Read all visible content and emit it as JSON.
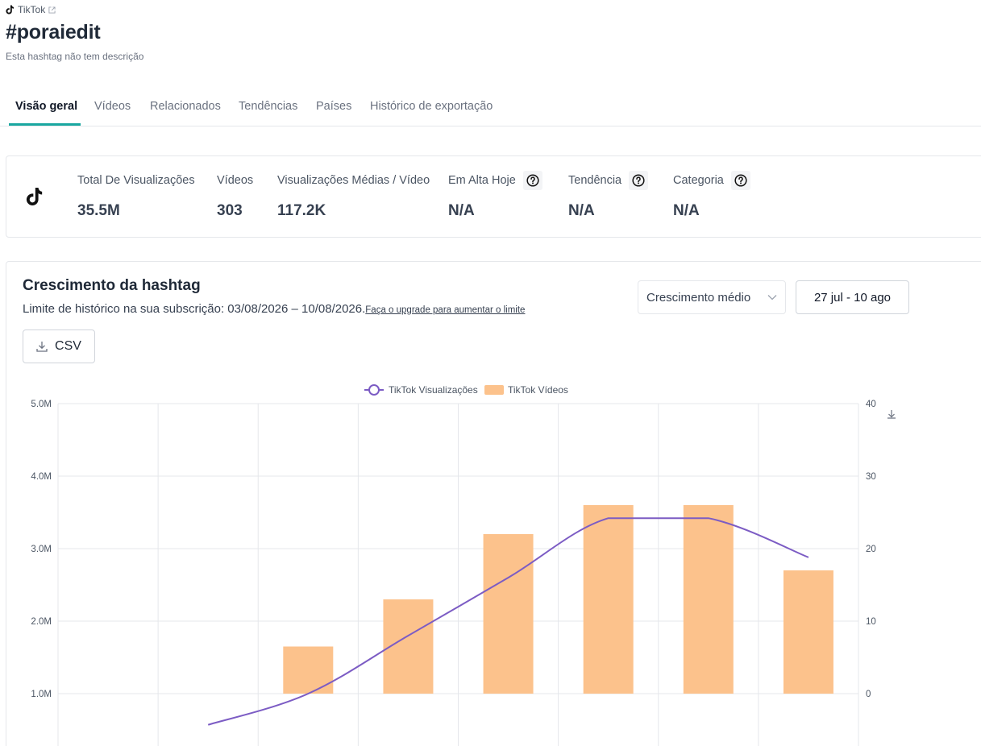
{
  "header": {
    "source_label": "TikTok",
    "source_icon": "tiktok-icon",
    "external_icon": "external-link-icon",
    "title": "#poraiedit",
    "description": "Esta hashtag não tem descrição"
  },
  "tabs": [
    {
      "label": "Visão geral",
      "active": true
    },
    {
      "label": "Vídeos",
      "active": false
    },
    {
      "label": "Relacionados",
      "active": false
    },
    {
      "label": "Tendências",
      "active": false
    },
    {
      "label": "Países",
      "active": false
    },
    {
      "label": "Histórico de exportação",
      "active": false
    }
  ],
  "stats": {
    "icon": "tiktok-icon",
    "items": [
      {
        "label": "Total De Visualizações",
        "value": "35.5M",
        "help": false
      },
      {
        "label": "Vídeos",
        "value": "303",
        "help": false
      },
      {
        "label": "Visualizações Médias / Vídeo",
        "value": "117.2K",
        "help": false
      },
      {
        "label": "Em Alta Hoje",
        "value": "N/A",
        "help": true
      },
      {
        "label": "Tendência",
        "value": "N/A",
        "help": true
      },
      {
        "label": "Categoria",
        "value": "N/A",
        "help": true
      }
    ]
  },
  "growth": {
    "title": "Crescimento da hashtag",
    "limit_text": "Limite de histórico na sua subscrição: 03/08/2026 – 10/08/2026.",
    "upgrade_link": "Faça o upgrade para aumentar o limite",
    "select_value": "Crescimento médio",
    "date_range": "27 jul - 10 ago",
    "csv_label": "CSV"
  },
  "colors": {
    "accent": "#19a7a0",
    "line_series": "#7c5cc4",
    "bar_series": "#fcc28c"
  },
  "chart_data": {
    "type": "bar",
    "x_labels_visible": false,
    "categories_count": 8,
    "series": [
      {
        "name": "TikTok Visualizações",
        "kind": "line",
        "axis": "left",
        "values": [
          null,
          0.57,
          1.0,
          1.8,
          2.6,
          3.42,
          3.42,
          2.88
        ]
      },
      {
        "name": "TikTok Vídeos",
        "kind": "bar",
        "axis": "right",
        "values": [
          null,
          null,
          6.5,
          13,
          22,
          26,
          26,
          17
        ]
      }
    ],
    "y_left": {
      "ticks": [
        "5.0M",
        "4.0M",
        "3.0M",
        "2.0M",
        "1.0M"
      ],
      "tick_values": [
        5.0,
        4.0,
        3.0,
        2.0,
        1.0
      ],
      "unit": "M",
      "ylim": [
        0.3,
        5.0
      ]
    },
    "y_right": {
      "ticks": [
        "40",
        "30",
        "20",
        "10",
        "0"
      ],
      "tick_values": [
        40,
        30,
        20,
        10,
        0
      ],
      "ylim": [
        -7.8,
        40
      ]
    },
    "grid": true,
    "legend_position": "top-center",
    "download_icon": "download-icon"
  }
}
